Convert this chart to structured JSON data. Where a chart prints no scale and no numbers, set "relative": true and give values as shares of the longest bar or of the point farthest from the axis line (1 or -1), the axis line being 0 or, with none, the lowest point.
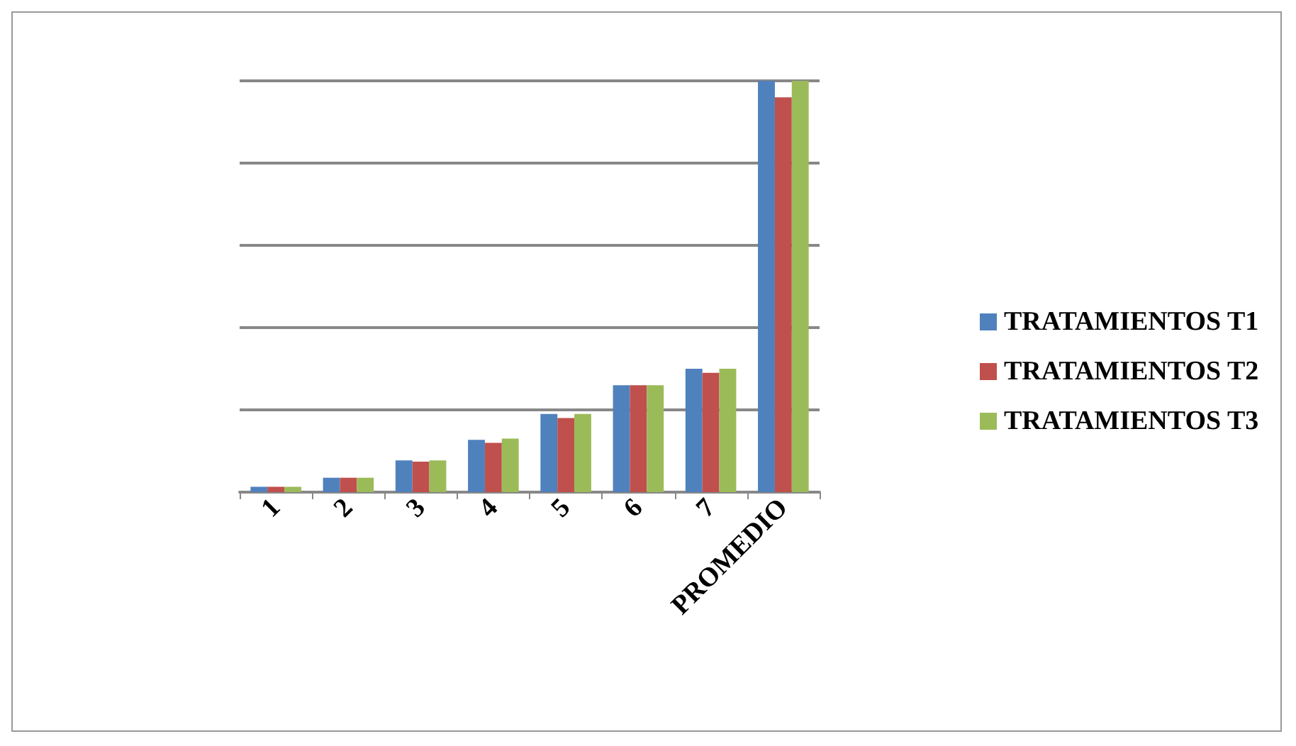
{
  "chart_data": {
    "type": "bar",
    "relative": true,
    "categories": [
      "1",
      "2",
      "3",
      "4",
      "5",
      "6",
      "7",
      "PROMEDIO"
    ],
    "series": [
      {
        "name": "TRATAMIENTOS T1",
        "color": "#4f81bd",
        "values": [
          0.013,
          0.035,
          0.077,
          0.127,
          0.19,
          0.26,
          0.3,
          1
        ]
      },
      {
        "name": "TRATAMIENTOS T2",
        "color": "#c0504d",
        "values": [
          0.013,
          0.035,
          0.074,
          0.12,
          0.18,
          0.26,
          0.29,
          0.96
        ]
      },
      {
        "name": "TRATAMIENTOS T3",
        "color": "#9bbb59",
        "values": [
          0.013,
          0.035,
          0.077,
          0.13,
          0.19,
          0.26,
          0.3,
          1
        ]
      }
    ],
    "grid": "y",
    "legend": "right"
  }
}
